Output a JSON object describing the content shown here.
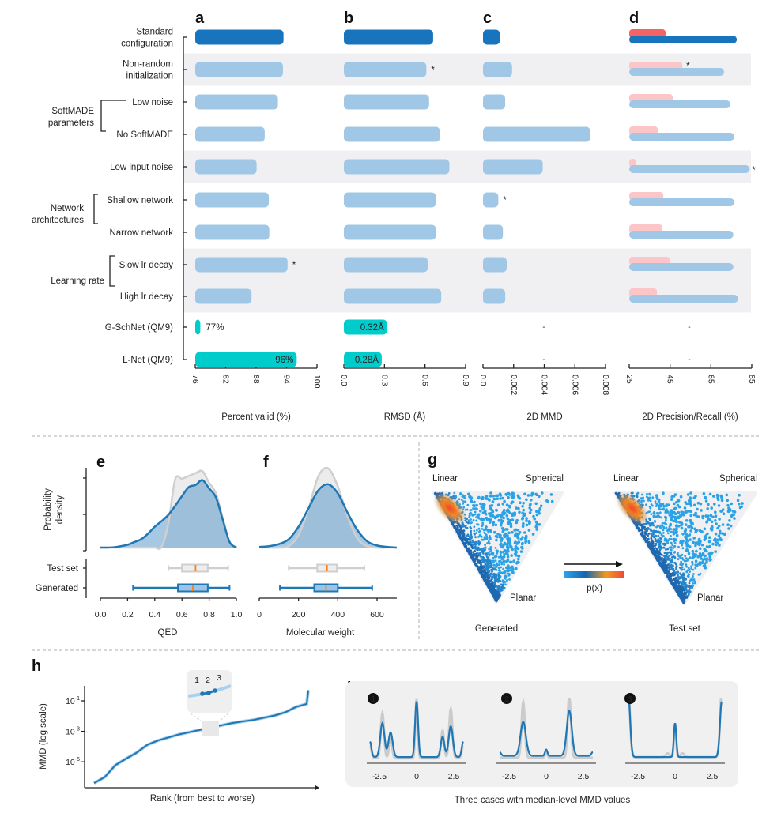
{
  "panel_letters": [
    "a",
    "b",
    "c",
    "d",
    "e",
    "f",
    "g",
    "h",
    "i"
  ],
  "rows": [
    {
      "label": [
        "Standard",
        "configuration"
      ]
    },
    {
      "label": [
        "Non-random",
        "initialization"
      ]
    },
    {
      "label": [
        "Low noise"
      ]
    },
    {
      "label": [
        "No SoftMADE"
      ]
    },
    {
      "label": [
        "Low input noise"
      ]
    },
    {
      "label": [
        "Shallow network"
      ]
    },
    {
      "label": [
        "Narrow network"
      ]
    },
    {
      "label": [
        "Slow lr decay"
      ]
    },
    {
      "label": [
        "High lr decay"
      ]
    },
    {
      "label": [
        "G-SchNet (QM9)"
      ]
    },
    {
      "label": [
        "L-Net (QM9)"
      ]
    }
  ],
  "groups": [
    {
      "label": [
        "SoftMADE",
        "parameters"
      ]
    },
    {
      "label": [
        "Network",
        "architectures"
      ]
    },
    {
      "label": [
        "Learning rate"
      ]
    }
  ],
  "colors": {
    "standard": "#1874bd",
    "variant": "#a0c8e6",
    "baseline_models": "#00cccc",
    "standard_secondary": "#f46464",
    "variant_secondary": "#fcc6c8",
    "band": "#f0f0f2",
    "generated": "#1f77b4",
    "test_set": "#cfcfcf",
    "median": "#ff7f0e"
  },
  "chart_data": [
    {
      "panel": "a",
      "type": "bar",
      "orientation": "horizontal",
      "xlabel": "Percent valid (%)",
      "xlim": [
        76,
        100
      ],
      "ticks": [
        "76",
        "82",
        "88",
        "94",
        "100"
      ],
      "tick_values": [
        76,
        82,
        88,
        94,
        100
      ],
      "values": [
        93.4,
        93.3,
        92.3,
        89.7,
        88.1,
        90.5,
        90.6,
        94.2,
        87.1,
        77,
        96
      ],
      "value_labels": {
        "9": "77%",
        "10": "96%"
      },
      "significant": [
        7
      ]
    },
    {
      "panel": "b",
      "type": "bar",
      "orientation": "horizontal",
      "xlabel": "RMSD (Å)",
      "xlim": [
        0,
        0.9
      ],
      "ticks": [
        "0.0",
        "0.3",
        "0.6",
        "0.9"
      ],
      "tick_values": [
        0,
        0.3,
        0.6,
        0.9
      ],
      "values": [
        0.66,
        0.61,
        0.63,
        0.71,
        0.78,
        0.68,
        0.68,
        0.62,
        0.72,
        0.32,
        0.28
      ],
      "value_labels": {
        "9": "0.32Å",
        "10": "0.28Å"
      },
      "significant": [
        1
      ]
    },
    {
      "panel": "c",
      "type": "bar",
      "orientation": "horizontal",
      "xlabel": "2D MMD",
      "xlim": [
        0,
        0.008
      ],
      "ticks": [
        "0.0",
        "0.002",
        "0.004",
        "0.006",
        "0.008"
      ],
      "tick_values": [
        0,
        0.002,
        0.004,
        0.006,
        0.008
      ],
      "values": [
        0.0011,
        0.0019,
        0.00145,
        0.007,
        0.0039,
        0.001,
        0.0013,
        0.00155,
        0.00145,
        null,
        null
      ],
      "missing_label": "-",
      "significant": [
        5
      ]
    },
    {
      "panel": "d",
      "type": "bar",
      "orientation": "horizontal",
      "xlabel": "2D Precision/Recall (%)",
      "xlim": [
        25,
        85
      ],
      "ticks": [
        "25",
        "45",
        "65",
        "85"
      ],
      "tick_values": [
        25,
        45,
        65,
        85
      ],
      "series": [
        {
          "color": "red",
          "values": [
            42.8,
            51,
            46.3,
            39,
            28.5,
            41.7,
            41.3,
            44.8,
            38.6,
            null,
            null
          ],
          "significant": [
            1
          ]
        },
        {
          "color": "blue",
          "values": [
            77.7,
            71.5,
            74.6,
            76.5,
            84,
            76.5,
            76,
            76,
            78.4,
            null,
            null
          ],
          "significant": [
            4
          ]
        }
      ],
      "missing_label": "-"
    },
    {
      "panel": "e",
      "type": "area",
      "xlabel": "QED",
      "ylabel": [
        "Probability",
        "density"
      ],
      "xlim": [
        0,
        1
      ],
      "ticks": [
        "0.0",
        "0.2",
        "0.4",
        "0.6",
        "0.8",
        "1.0"
      ],
      "tick_values": [
        0,
        0.2,
        0.4,
        0.6,
        0.8,
        1.0
      ],
      "density_x": [
        0,
        0.05,
        0.1,
        0.15,
        0.2,
        0.25,
        0.3,
        0.35,
        0.4,
        0.45,
        0.5,
        0.55,
        0.6,
        0.65,
        0.7,
        0.75,
        0.8,
        0.85,
        0.9,
        0.95,
        1.0
      ],
      "density_generated": [
        0,
        0,
        0.005,
        0.02,
        0.04,
        0.08,
        0.12,
        0.2,
        0.3,
        0.38,
        0.47,
        0.6,
        0.74,
        0.87,
        0.9,
        0.97,
        0.85,
        0.72,
        0.4,
        0.08,
        0
      ],
      "density_test_set": [
        0,
        0,
        0,
        0,
        0,
        0,
        0,
        0,
        0,
        0.01,
        0.35,
        0.98,
        0.99,
        1.03,
        1.07,
        1.1,
        0.93,
        0.78,
        0.42,
        0.08,
        0
      ],
      "box_labels": [
        "Test set",
        "Generated"
      ],
      "boxes": [
        {
          "whisker_low": 0.5,
          "q1": 0.6,
          "median": 0.7,
          "q3": 0.79,
          "whisker_high": 0.94
        },
        {
          "whisker_low": 0.24,
          "q1": 0.57,
          "median": 0.68,
          "q3": 0.79,
          "whisker_high": 0.95
        }
      ]
    },
    {
      "panel": "f",
      "type": "area",
      "xlabel": "Molecular weight",
      "xlim": [
        0,
        700
      ],
      "ticks": [
        "0",
        "200",
        "400",
        "600"
      ],
      "tick_values": [
        0,
        200,
        400,
        600
      ],
      "density_x": [
        0,
        50,
        100,
        150,
        200,
        250,
        300,
        350,
        400,
        450,
        500,
        550,
        600,
        650,
        700
      ],
      "density_generated": [
        0.01,
        0.02,
        0.05,
        0.12,
        0.3,
        0.56,
        0.82,
        0.91,
        0.78,
        0.5,
        0.25,
        0.09,
        0.03,
        0.01,
        0
      ],
      "density_test_set": [
        0,
        0,
        0,
        0.02,
        0.18,
        0.55,
        1.02,
        1.14,
        0.88,
        0.45,
        0.13,
        0.02,
        0,
        0,
        0
      ],
      "boxes": [
        {
          "whisker_low": 150,
          "q1": 295,
          "median": 345,
          "q3": 395,
          "whisker_high": 535
        },
        {
          "whisker_low": 105,
          "q1": 280,
          "median": 340,
          "q3": 400,
          "whisker_high": 575
        }
      ]
    },
    {
      "panel": "g",
      "type": "scatter",
      "corners": [
        "Linear",
        "Spherical",
        "Planar"
      ],
      "subplots": [
        "Generated",
        "Test set"
      ],
      "colorbar_label": "p(x)",
      "colorbar_colors": [
        "#2aa3e8",
        "#1565b0",
        "#f29a1e",
        "#f0443a"
      ]
    },
    {
      "panel": "h",
      "type": "line",
      "xlabel": "Rank (from best to worse)",
      "ylabel": "MMD (log scale)",
      "yscale": "log",
      "yticks": [
        "10",
        "10",
        "10"
      ],
      "ytick_exponents": [
        "-1",
        "-3",
        "-5"
      ],
      "ytick_values": [
        0.1,
        0.001,
        1e-05
      ],
      "inset_labels": [
        "1",
        "2",
        "3"
      ],
      "mmd_by_rank": [
        4e-07,
        1e-06,
        6e-06,
        1.6e-05,
        4e-05,
        0.00013,
        0.00025,
        0.0004,
        0.00063,
        0.00089,
        0.00126,
        0.0018,
        0.0025,
        0.0035,
        0.0045,
        0.0056,
        0.0079,
        0.011,
        0.018,
        0.04,
        0.063,
        0.5
      ]
    },
    {
      "panel": "i",
      "type": "line",
      "caption": "Three cases with median-level MMD values",
      "case_labels": [
        "1",
        "2",
        "3"
      ],
      "ticks": [
        "-2.5",
        "0",
        "2.5"
      ],
      "tick_values": [
        -2.5,
        0,
        2.5
      ],
      "cases": [
        {
          "generated": {
            "baseline": 0.05,
            "peaks": [
              [
                -3.14,
                0.25,
                0.1
              ],
              [
                -2.3,
                0.55,
                0.14
              ],
              [
                -1.75,
                0.4,
                0.14
              ],
              [
                0,
                0.9,
                0.1
              ],
              [
                1.75,
                0.33,
                0.12
              ],
              [
                2.3,
                0.5,
                0.14
              ],
              [
                3.14,
                0.25,
                0.1
              ]
            ]
          },
          "reference": {
            "baseline": 0.03,
            "peaks": [
              [
                -3.14,
                0.2,
                0.1
              ],
              [
                -2.3,
                0.73,
                0.11
              ],
              [
                -1.75,
                0.35,
                0.1
              ],
              [
                0,
                0.97,
                0.08
              ],
              [
                1.75,
                0.45,
                0.1
              ],
              [
                2.3,
                0.8,
                0.11
              ],
              [
                3.14,
                0.2,
                0.1
              ]
            ]
          }
        },
        {
          "generated": {
            "baseline": 0.07,
            "peaks": [
              [
                -3.14,
                0.06,
                0.1
              ],
              [
                -1.55,
                0.55,
                0.18
              ],
              [
                0,
                0.1,
                0.08
              ],
              [
                1.55,
                0.73,
                0.17
              ],
              [
                3.14,
                0.06,
                0.1
              ]
            ]
          },
          "reference": {
            "baseline": 0.04,
            "peaks": [
              [
                -1.55,
                0.9,
                0.11
              ],
              [
                0,
                0.08,
                0.08
              ],
              [
                1.55,
                1.0,
                0.11
              ]
            ]
          }
        },
        {
          "generated": {
            "baseline": 0.05,
            "peaks": [
              [
                -3.14,
                1.0,
                0.12
              ],
              [
                0,
                0.55,
                0.08
              ],
              [
                3.14,
                0.9,
                0.12
              ]
            ]
          },
          "reference": {
            "baseline": 0.05,
            "peaks": [
              [
                -3.14,
                1.1,
                0.11
              ],
              [
                -0.5,
                0.06,
                0.12
              ],
              [
                0,
                0.55,
                0.07
              ],
              [
                0.5,
                0.06,
                0.12
              ],
              [
                3.14,
                1.1,
                0.11
              ]
            ]
          }
        }
      ]
    }
  ]
}
